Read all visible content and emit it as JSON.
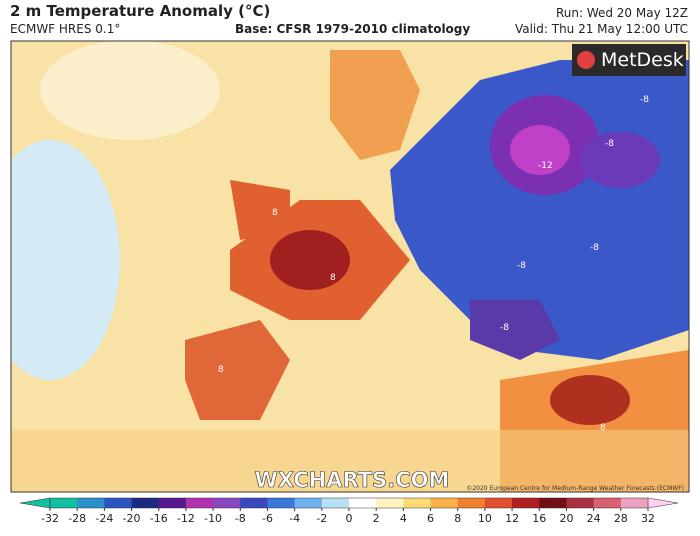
{
  "header": {
    "title": "2 m Temperature Anomaly (°C)",
    "model": "ECMWF HRES 0.1°",
    "base": "Base: CFSR 1979-2010 climatology",
    "run": "Run: Wed 20 May 12Z",
    "valid": "Valid: Thu 21 May 12:00 UTC"
  },
  "logo": "MetDesk",
  "watermark": "WXCHARTS.COM",
  "copyright": "©2020 European Centre for Medium-Range Weather Forecasts (ECMWF)",
  "colorbar": {
    "ticks": [
      -32,
      -28,
      -24,
      -20,
      -16,
      -12,
      -10,
      -8,
      -6,
      -4,
      -2,
      0,
      2,
      4,
      6,
      8,
      10,
      12,
      16,
      20,
      24,
      28,
      32
    ],
    "colors": [
      "#10c0a0",
      "#2a90c8",
      "#2a55c0",
      "#1a2a80",
      "#5a1890",
      "#b030b0",
      "#8a48c0",
      "#3a48c0",
      "#3a78d8",
      "#70b0ee",
      "#b8e0f4",
      "#ffffff",
      "#fff3c0",
      "#ffd878",
      "#f8b048",
      "#f08030",
      "#e05030",
      "#b02020",
      "#701010",
      "#a83040",
      "#d86070",
      "#eea0c0",
      "#ffd0f0"
    ]
  },
  "map": {
    "contour_labels": [
      "8",
      "8",
      "-8",
      "-8",
      "-12",
      "-8",
      "-8",
      "8",
      "8",
      "-8"
    ]
  }
}
